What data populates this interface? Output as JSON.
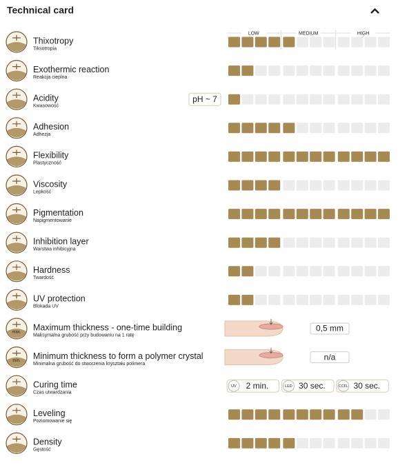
{
  "header": {
    "title": "Technical card"
  },
  "scale": {
    "labels": [
      "LOW",
      "MEDIUM",
      "HIGH"
    ],
    "max": 12,
    "per_group": 4
  },
  "rows": [
    {
      "title": "Thixotropy",
      "subtitle": "Tiksotropia",
      "level": 5
    },
    {
      "title": "Exothermic reaction",
      "subtitle": "Reakcja cieplna",
      "level": 2
    },
    {
      "title": "Acidity",
      "subtitle": "Kwasowość",
      "level": 1,
      "badge": "pH ~ 7"
    },
    {
      "title": "Adhesion",
      "subtitle": "Adhezja",
      "level": 5
    },
    {
      "title": "Flexibility",
      "subtitle": "Plastyczność",
      "level": 12
    },
    {
      "title": "Viscosity",
      "subtitle": "Lepkość",
      "level": 4
    },
    {
      "title": "Pigmentation",
      "subtitle": "Napigmentowanie",
      "level": 12
    },
    {
      "title": "Inhibition layer",
      "subtitle": "Warstwa inhibicyjna",
      "level": 4
    },
    {
      "title": "Hardness",
      "subtitle": "Twardość",
      "level": 2
    },
    {
      "title": "UV protection",
      "subtitle": "Blokada UV",
      "level": 2
    },
    {
      "title": "Maximum thickness - one-time building",
      "subtitle": "Maksymalna grubość przy budowaniu na 1 ratę",
      "icon_label": "max.",
      "measure": "0,5 mm"
    },
    {
      "title": "Minimum thickness to form a polymer crystal",
      "subtitle": "Minimalna grubość do stworzenia kryształu polimera",
      "icon_label": "min.",
      "measure": "n/a"
    },
    {
      "title": "Curing time",
      "subtitle": "Czas utwardzania",
      "curing": [
        {
          "lamp": "UV",
          "time": "2 min."
        },
        {
          "lamp": "LED",
          "time": "30 sec."
        },
        {
          "lamp": "CCFL",
          "time": "30 sec."
        }
      ]
    },
    {
      "title": "Leveling",
      "subtitle": "Poziomowanie się",
      "level": 10
    },
    {
      "title": "Density",
      "subtitle": "Gęstość",
      "level": 5
    }
  ]
}
